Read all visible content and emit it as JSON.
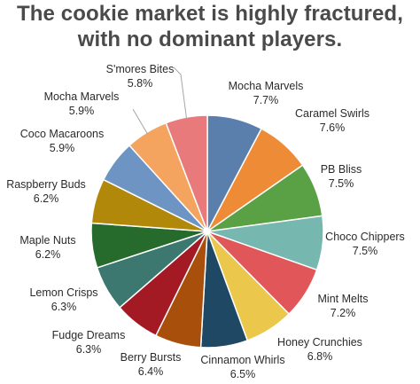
{
  "chart_data": {
    "type": "pie",
    "title_lines": [
      "The cookie market is highly fractured,",
      "with no dominant players."
    ],
    "slices": [
      {
        "label": "Mocha Marvels",
        "value": 7.7,
        "display": "7.7%",
        "color": "#5b7fad"
      },
      {
        "label": "Caramel Swirls",
        "value": 7.6,
        "display": "7.6%",
        "color": "#ed8b37"
      },
      {
        "label": "PB Bliss",
        "value": 7.5,
        "display": "7.5%",
        "color": "#5aa044"
      },
      {
        "label": "Choco Chippers",
        "value": 7.5,
        "display": "7.5%",
        "color": "#76b7b0"
      },
      {
        "label": "Mint Melts",
        "value": 7.2,
        "display": "7.2%",
        "color": "#e15659"
      },
      {
        "label": "Honey Crunchies",
        "value": 6.8,
        "display": "6.8%",
        "color": "#ebc84c"
      },
      {
        "label": "Cinnamon Whirls",
        "value": 6.5,
        "display": "6.5%",
        "color": "#1f4865"
      },
      {
        "label": "Berry Bursts",
        "value": 6.4,
        "display": "6.4%",
        "color": "#a94f0c"
      },
      {
        "label": "Fudge Dreams",
        "value": 6.3,
        "display": "6.3%",
        "color": "#a31a24"
      },
      {
        "label": "Lemon Crisps",
        "value": 6.3,
        "display": "6.3%",
        "color": "#3c7770"
      },
      {
        "label": "Maple Nuts",
        "value": 6.2,
        "display": "6.2%",
        "color": "#266a2c"
      },
      {
        "label": "Raspberry Buds",
        "value": 6.2,
        "display": "6.2%",
        "color": "#b18809"
      },
      {
        "label": "Coco Macaroons",
        "value": 5.9,
        "display": "5.9%",
        "color": "#6e94c3"
      },
      {
        "label": "Mocha Marvels",
        "value": 5.9,
        "display": "5.9%",
        "color": "#f4a45f"
      },
      {
        "label": "S'mores Bites",
        "value": 5.8,
        "display": "5.8%",
        "color": "#e87a7c"
      }
    ],
    "start": "12 o'clock",
    "direction": "clockwise",
    "slice_border_color": "#ffffff"
  }
}
